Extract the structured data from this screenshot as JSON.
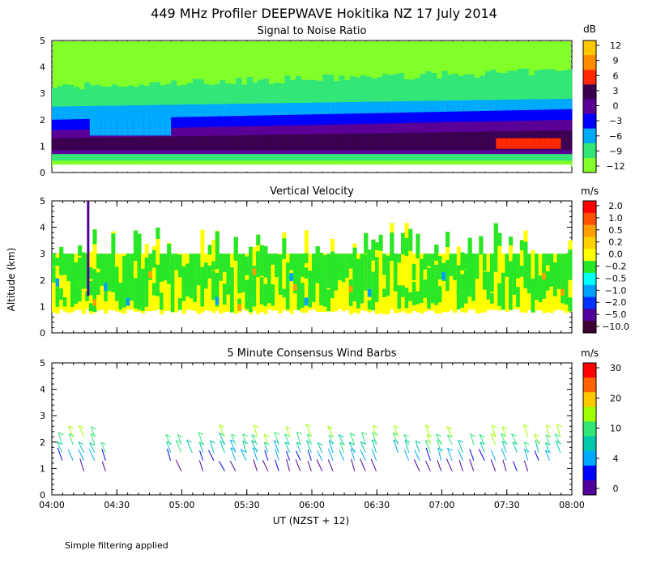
{
  "title": "449 MHz Profiler DEEPWAVE Hokitika NZ 17 July 2014",
  "xlabel": "UT   (NZST + 12)",
  "ylabel": "Altitude (km)",
  "footer": "Simple filtering applied",
  "chart_data": [
    {
      "type": "heatmap",
      "title": "Signal to Noise Ratio",
      "units": "dB",
      "x_range_hours": [
        4.0,
        8.0
      ],
      "ylim": [
        0,
        5
      ],
      "y_ticks": [
        "0",
        "1",
        "2",
        "3",
        "4",
        "5"
      ],
      "x_ticks": [
        "04:00",
        "04:30",
        "05:00",
        "05:30",
        "06:00",
        "06:30",
        "07:00",
        "07:30",
        "08:00"
      ],
      "x_tick_hours": [
        4.0,
        4.5,
        5.0,
        5.5,
        6.0,
        6.5,
        7.0,
        7.5,
        8.0
      ],
      "colorbar_labels": [
        "12",
        "9",
        "6",
        "3",
        "0",
        "−3",
        "−6",
        "−9",
        "−12"
      ],
      "colorbar_colors": [
        "#ffc800",
        "#ff8c00",
        "#ff2800",
        "#3c0050",
        "#5a0096",
        "#0000ff",
        "#00aaff",
        "#32e678",
        "#82ff28"
      ],
      "data_rows": [
        {
          "alt": 0.35,
          "snr": -12
        },
        {
          "alt": 0.65,
          "snr": -9
        },
        {
          "alt": 0.95,
          "snr": 3
        },
        {
          "alt": 1.25,
          "snr": 3
        },
        {
          "alt": 1.55,
          "snr": 0
        },
        {
          "alt": 1.85,
          "snr": -3
        },
        {
          "alt": 2.2,
          "snr": -6
        },
        {
          "alt": 2.6,
          "snr": -9
        },
        {
          "alt": 3.0,
          "snr": -9
        },
        {
          "alt": 3.5,
          "snr": -12
        },
        {
          "alt": 4.2,
          "snr": -12
        }
      ]
    },
    {
      "type": "heatmap",
      "title": "Vertical Velocity",
      "units": "m/s",
      "x_range_hours": [
        4.0,
        8.0
      ],
      "ylim": [
        0,
        5
      ],
      "y_ticks": [
        "0",
        "1",
        "2",
        "3",
        "4",
        "5"
      ],
      "x_ticks": [
        "04:00",
        "04:30",
        "05:00",
        "05:30",
        "06:00",
        "06:30",
        "07:00",
        "07:30",
        "08:00"
      ],
      "x_tick_hours": [
        4.0,
        4.5,
        5.0,
        5.5,
        6.0,
        6.5,
        7.0,
        7.5,
        8.0
      ],
      "colorbar_labels": [
        "2.0",
        "1.0",
        "0.5",
        "0.2",
        "0.0",
        "−0.2",
        "−0.5",
        "−1.0",
        "−2.0",
        "−5.0",
        "−10.0"
      ],
      "colorbar_colors": [
        "#ff0000",
        "#ff5000",
        "#ffa000",
        "#ffd200",
        "#ffff00",
        "#28e628",
        "#00ffff",
        "#00a0ff",
        "#0032ff",
        "#50009b",
        "#3c0032"
      ],
      "data_extent_alt": [
        0.7,
        3.0
      ],
      "dominant_values": [
        0.0,
        -0.2
      ]
    },
    {
      "type": "scatter",
      "title": "5 Minute Consensus Wind Barbs",
      "units": "m/s",
      "x_range_hours": [
        4.0,
        8.0
      ],
      "ylim": [
        0,
        5
      ],
      "y_ticks": [
        "0",
        "1",
        "2",
        "3",
        "4",
        "5"
      ],
      "x_ticks": [
        "04:00",
        "04:30",
        "05:00",
        "05:30",
        "06:00",
        "06:30",
        "07:00",
        "07:30",
        "08:00"
      ],
      "x_tick_hours": [
        4.0,
        4.5,
        5.0,
        5.5,
        6.0,
        6.5,
        7.0,
        7.5,
        8.0
      ],
      "colorbar_labels": [
        "30",
        "20",
        "10",
        "4",
        "0"
      ],
      "colorbar_colors": [
        "#ff0000",
        "#ff6400",
        "#ffc800",
        "#a0ff00",
        "#32e678",
        "#00c8aa",
        "#00aaff",
        "#0000ff",
        "#50009b"
      ],
      "barb_altitudes_km": [
        0.9,
        1.3,
        1.6,
        1.9,
        2.2
      ],
      "barb_speeds_m_s": [
        2,
        5,
        8,
        10,
        12
      ]
    }
  ]
}
